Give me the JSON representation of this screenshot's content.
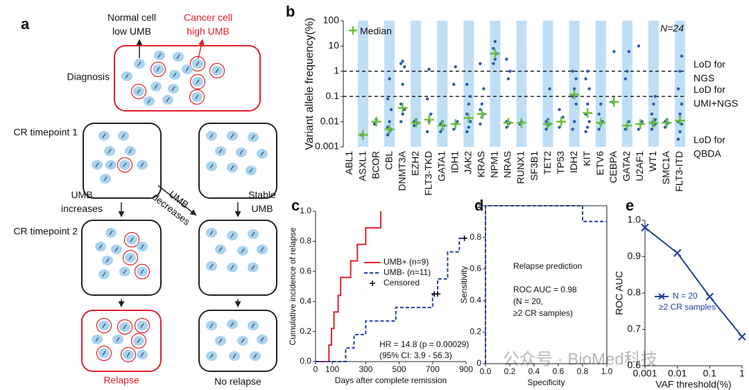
{
  "panel_labels": [
    "a",
    "b",
    "c",
    "d",
    "e"
  ],
  "diagram": {
    "normal_cell": [
      "Normal cell",
      "low UMB"
    ],
    "cancer_cell": [
      "Cancer cell",
      "high UMB"
    ],
    "diagnosis": "Diagnosis",
    "cr_timepoint_1": "CR timepoint 1",
    "umb_increases": [
      "UMB",
      "increases"
    ],
    "umb_decreases": [
      "UMB",
      "decreases"
    ],
    "stable_umb": [
      "Stable",
      "UMB"
    ],
    "cr_timepoint_2": "CR timepoint 2",
    "relapse": "Relapse",
    "no_relapse": "No relapse"
  },
  "watermark": "公众号 · BioMed科技",
  "chart_data": [
    {
      "type": "strip",
      "ylabel": "Variant allele frequency(%)",
      "categories": [
        "ABL1",
        "ASXL1",
        "BCOR",
        "CBL",
        "DNMT3A",
        "EZH2",
        "FLT3-TKD",
        "GATA1",
        "IDH1",
        "JAK2",
        "KRAS",
        "NPM1",
        "NRAS",
        "RUNX1",
        "SF3B1",
        "TET2",
        "TP53",
        "IDH2",
        "KIT",
        "ETV6",
        "CEBPA",
        "GATA2",
        "U2AF1",
        "WT1",
        "SMC1A",
        "FLT3-ITD"
      ],
      "points": [
        [],
        [
          0.003
        ],
        [
          0.008,
          0.012
        ],
        [
          0.003,
          0.004,
          0.005,
          0.006,
          0.01,
          0.03,
          0.08,
          0.5
        ],
        [
          0.01,
          0.02,
          0.03,
          0.05,
          0.3,
          1.5,
          2,
          2.5
        ],
        [
          0.007,
          0.008,
          0.009,
          0.01,
          0.012
        ],
        [
          0.004,
          0.01,
          0.02,
          0.08,
          1.2
        ],
        [
          0.004,
          0.005,
          0.007,
          0.008,
          0.01
        ],
        [
          0.005,
          0.008,
          0.01,
          0.3,
          1.5
        ],
        [
          0.004,
          0.006,
          0.01,
          0.02,
          0.05,
          0.1,
          0.3
        ],
        [
          0.008,
          0.015,
          0.02,
          0.03,
          0.05,
          0.2,
          2
        ],
        [
          2,
          3,
          5,
          8,
          15
        ],
        [
          0.006,
          0.008,
          0.009,
          0.01,
          0.5,
          1,
          3
        ],
        [
          0.008,
          0.01
        ],
        [],
        [
          0.005,
          0.007,
          0.008,
          0.01,
          0.012,
          0.2
        ],
        [
          0.006,
          0.01,
          0.015,
          0.03
        ],
        [
          0.005,
          0.01,
          0.05,
          0.1,
          0.2,
          0.5,
          1
        ],
        [
          0.004,
          0.006,
          0.01,
          0.02,
          0.05,
          0.2,
          0.5,
          1
        ],
        [
          0.005,
          0.008,
          0.01,
          0.02,
          0.05
        ],
        [
          0.06,
          6
        ],
        [
          0.005,
          0.007,
          0.01,
          0.5,
          1,
          6
        ],
        [
          0.005,
          0.008,
          0.01,
          10
        ],
        [
          0.005,
          0.007,
          0.008,
          0.009,
          0.01,
          0.012,
          0.02,
          0.05,
          0.1
        ],
        [
          0.006,
          0.008,
          0.009,
          0.01,
          0.012
        ],
        [
          0.002,
          0.004,
          0.008,
          0.01,
          0.02,
          0.05,
          0.2,
          1,
          4
        ]
      ],
      "point_color": "#2a5cb0",
      "medians": [
        null,
        0.003,
        0.01,
        0.005,
        0.035,
        0.009,
        0.012,
        0.007,
        0.008,
        0.014,
        0.02,
        5,
        0.009,
        0.009,
        null,
        0.008,
        0.01,
        0.12,
        0.022,
        0.009,
        0.06,
        0.007,
        0.008,
        0.009,
        0.009,
        0.011
      ],
      "median_color": "#6abf3a",
      "legend": "Median",
      "annotation": "N=24",
      "ylim": [
        0.001,
        100
      ],
      "yticks": [
        0.001,
        0.01,
        0.1,
        1,
        10,
        100
      ],
      "log_y": true,
      "band_color": "#bfdff7",
      "thresholds": [
        {
          "value": 1,
          "line": true,
          "label": [
            "LoD for",
            "NGS"
          ]
        },
        {
          "value": 0.1,
          "line": true,
          "label": [
            "LoD for",
            "UMI+NGS"
          ]
        },
        {
          "value": 0.001,
          "line": false,
          "label": [
            "LoD for",
            "QBDA"
          ]
        }
      ]
    },
    {
      "type": "step",
      "ylabel": "Cumulative incidence of relapse",
      "xlabel": "Days after complete remission",
      "xlim": [
        0,
        900
      ],
      "xticks": [
        0,
        100,
        300,
        500,
        700,
        900
      ],
      "ylim": [
        0,
        1
      ],
      "yticks": [
        {
          "value": 0,
          "label": "0.0"
        },
        0.2,
        0.4,
        0.6,
        0.8,
        {
          "value": 1,
          "label": "1.0"
        }
      ],
      "series": [
        {
          "name": "UMB+ (n=9)",
          "color": "#e0202a",
          "dash": false,
          "x": [
            0,
            80,
            95,
            110,
            135,
            150,
            210,
            250,
            300,
            390
          ],
          "values": [
            0,
            0.11,
            0.22,
            0.33,
            0.44,
            0.56,
            0.67,
            0.78,
            0.89,
            1
          ]
        },
        {
          "name": "UMB- (n=11)",
          "color": "#1f3f9f",
          "dash": true,
          "x": [
            0,
            180,
            230,
            300,
            480,
            700,
            730,
            790,
            860,
            900
          ],
          "values": [
            0,
            0.09,
            0.18,
            0.27,
            0.36,
            0.45,
            0.55,
            0.73,
            0.82,
            0.82
          ]
        }
      ],
      "censored": {
        "name": "Censored",
        "color": "#000000",
        "x": [
          710,
          730,
          890
        ],
        "values": [
          0.45,
          0.45,
          0.82
        ]
      },
      "annotations": [
        "HR = 14.8 (p = 0.00029)",
        "(95% CI: 3.9 - 56.3)"
      ]
    },
    {
      "type": "line",
      "frame": "box",
      "title": "Relapse prediction",
      "annotations": [
        "ROC AUC = 0.98",
        "(N = 20,",
        "≥2 CR samples)"
      ],
      "xlabel": "Specificity",
      "ylabel": "Sensitivity",
      "xlim": [
        0,
        1
      ],
      "xticks": [
        {
          "value": 0,
          "label": "0.0"
        },
        0.2,
        0.4,
        0.6,
        0.8,
        {
          "value": 1,
          "label": "1.0"
        }
      ],
      "ylim": [
        0,
        1
      ],
      "yticks": [
        0,
        0.2,
        0.4,
        0.6,
        0.8,
        1
      ],
      "series": [
        {
          "color": "#1f3f9f",
          "dash": true,
          "x": [
            0,
            0,
            0.8,
            0.8,
            1
          ],
          "values": [
            0,
            1,
            1,
            0.9,
            0.9
          ]
        }
      ]
    },
    {
      "type": "line",
      "xlabel": "VAF threshold(%)",
      "ylabel": "ROC AUC",
      "log_x": true,
      "xlim": [
        0.001,
        1
      ],
      "xticks": [
        0.001,
        0.01,
        0.1,
        1
      ],
      "ylim": [
        0.6,
        1
      ],
      "yticks": [
        0.6,
        0.7,
        0.8,
        0.9,
        {
          "value": 1,
          "label": "1.0"
        }
      ],
      "series": [
        {
          "name": "N = 20",
          "subtitle": "≥2 CR samples",
          "color": "#1f3f9f",
          "dash": false,
          "marker": true,
          "x": [
            0.001,
            0.01,
            0.1,
            1
          ],
          "values": [
            0.98,
            0.91,
            0.79,
            0.68
          ]
        }
      ]
    }
  ]
}
